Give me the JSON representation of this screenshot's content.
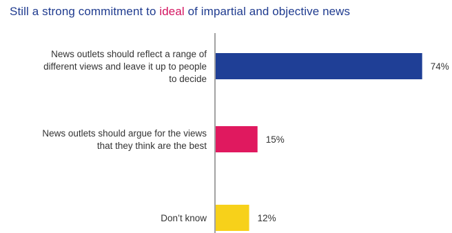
{
  "title": {
    "before": "Still a strong commitment to ",
    "highlight": "ideal",
    "after": " of impartial and objective news"
  },
  "colors": {
    "title": "#1f3b8f",
    "highlight": "#d3135f",
    "axis": "#444444"
  },
  "chart_data": {
    "type": "bar",
    "orientation": "horizontal",
    "title": "Still a strong commitment to ideal of impartial and objective news",
    "xlim": [
      0,
      100
    ],
    "grid": false,
    "legend": "none",
    "categories": [
      [
        "News outlets should reflect a range of",
        "different views and leave it up to people",
        "to decide"
      ],
      [
        "News outlets should argue for the views",
        "that they think are the best"
      ],
      [
        "Don’t know"
      ]
    ],
    "values": [
      74,
      15,
      12
    ],
    "value_labels": [
      "74%",
      "15%",
      "12%"
    ],
    "bar_colors": [
      "#1f3f96",
      "#e0195f",
      "#f7d11a"
    ]
  }
}
